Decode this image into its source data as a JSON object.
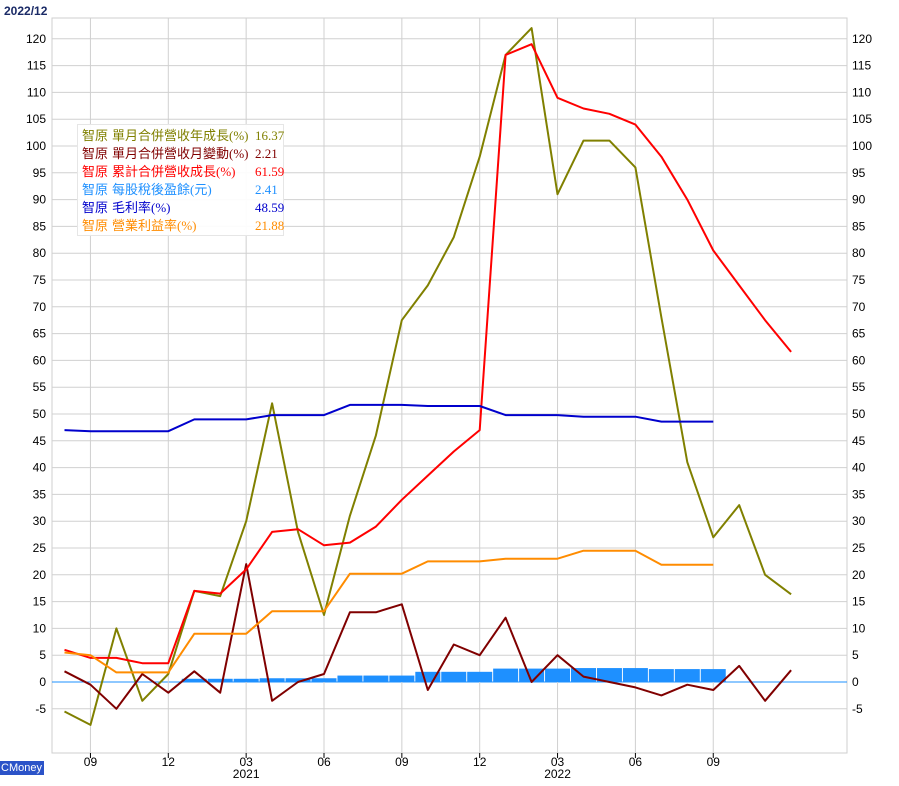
{
  "period_label": "2022/12",
  "brand": "CMoney",
  "company": "智原",
  "legend_items": [
    {
      "name": "單月合併營收年成長(%)",
      "value": "16.37",
      "color": "#808000"
    },
    {
      "name": "單月合併營收月變動(%)",
      "value": "2.21",
      "color": "#800000"
    },
    {
      "name": "累計合併營收成長(%)",
      "value": "61.59",
      "color": "#ff0000"
    },
    {
      "name": "每股稅後盈餘(元)",
      "value": "2.41",
      "color": "#1e90ff"
    },
    {
      "name": "毛利率(%)",
      "value": "48.59",
      "color": "#0000cc"
    },
    {
      "name": "營業利益率(%)",
      "value": "21.88",
      "color": "#ff8c00"
    }
  ],
  "chart_data": {
    "type": "line",
    "x": [
      "2020-08",
      "2020-09",
      "2020-10",
      "2020-11",
      "2020-12",
      "2021-01",
      "2021-02",
      "2021-03",
      "2021-04",
      "2021-05",
      "2021-06",
      "2021-07",
      "2021-08",
      "2021-09",
      "2021-10",
      "2021-11",
      "2021-12",
      "2022-01",
      "2022-02",
      "2022-03",
      "2022-04",
      "2022-05",
      "2022-06",
      "2022-07",
      "2022-08",
      "2022-09",
      "2022-10",
      "2022-11",
      "2022-12"
    ],
    "x_tick_labels": [
      "09",
      "12",
      "03",
      "06",
      "09",
      "12",
      "03",
      "06",
      "09"
    ],
    "x_year_labels": [
      "2021",
      "2022"
    ],
    "ylim": [
      -10,
      123
    ],
    "y_ticks": [
      -5,
      0,
      5,
      10,
      15,
      20,
      25,
      30,
      35,
      40,
      45,
      50,
      55,
      60,
      65,
      70,
      75,
      80,
      85,
      90,
      95,
      100,
      105,
      110,
      115,
      120
    ],
    "grid": true,
    "legend_position": "top-left",
    "series": [
      {
        "name": "單月合併營收年成長(%)",
        "type": "line",
        "color": "#808000",
        "values": [
          -5.5,
          -8,
          10,
          -3.5,
          1.5,
          17,
          16,
          30,
          52,
          28,
          12.5,
          31,
          46,
          67.5,
          74,
          83,
          98,
          117,
          122,
          91,
          101,
          101,
          96,
          68,
          41,
          27,
          33,
          20,
          16.37
        ]
      },
      {
        "name": "單月合併營收月變動(%)",
        "type": "line",
        "color": "#800000",
        "values": [
          2,
          -0.5,
          -5,
          1.5,
          -2,
          2,
          -2,
          22,
          -3.5,
          0,
          1.5,
          13,
          13,
          14.5,
          -1.5,
          7,
          5,
          12,
          0,
          5,
          1,
          0,
          -1,
          -2.5,
          -0.5,
          -1.5,
          3,
          -3.5,
          2.21
        ]
      },
      {
        "name": "累計合併營收成長(%)",
        "type": "line",
        "color": "#ff0000",
        "values": [
          6,
          4.5,
          4.5,
          3.5,
          3.5,
          17,
          16.5,
          21,
          28,
          28.5,
          25.5,
          26,
          29,
          34,
          38.5,
          43,
          47,
          117,
          119,
          109,
          107,
          106,
          104,
          98,
          90,
          80.5,
          74,
          67.5,
          61.59
        ]
      },
      {
        "name": "每股稅後盈餘(元)",
        "type": "bar",
        "color": "#1e90ff",
        "values": [
          null,
          null,
          null,
          null,
          null,
          0.6,
          0.6,
          0.6,
          0.7,
          0.7,
          0.7,
          1.2,
          1.2,
          1.2,
          1.9,
          1.9,
          1.9,
          2.5,
          2.5,
          2.5,
          2.6,
          2.6,
          2.6,
          2.41,
          2.41,
          2.41,
          null,
          null,
          null
        ]
      },
      {
        "name": "毛利率(%)",
        "type": "line",
        "color": "#0000cc",
        "values": [
          47,
          46.8,
          46.8,
          46.8,
          46.8,
          49,
          49,
          49,
          49.8,
          49.8,
          49.8,
          51.7,
          51.7,
          51.7,
          51.5,
          51.5,
          51.5,
          49.8,
          49.8,
          49.8,
          49.5,
          49.5,
          49.5,
          48.59,
          48.59,
          48.59,
          null,
          null,
          null
        ]
      },
      {
        "name": "營業利益率(%)",
        "type": "line",
        "color": "#ff8c00",
        "values": [
          5.5,
          5,
          1.8,
          1.8,
          1.8,
          9,
          9,
          9,
          13.2,
          13.2,
          13.2,
          20.2,
          20.2,
          20.2,
          22.5,
          22.5,
          22.5,
          23,
          23,
          23,
          24.5,
          24.5,
          24.5,
          21.88,
          21.88,
          21.88,
          null,
          null,
          null
        ]
      }
    ]
  }
}
